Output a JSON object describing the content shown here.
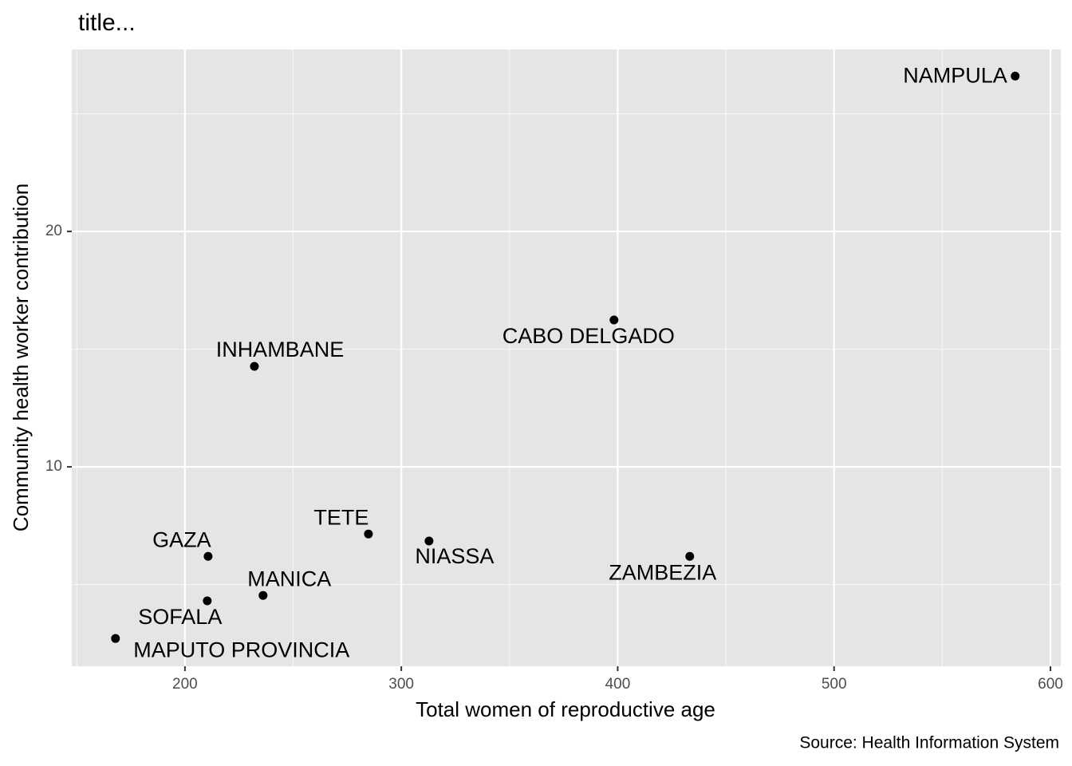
{
  "chart_data": {
    "type": "scatter",
    "title": "title...",
    "x_label": "Total women of reproductive age",
    "y_label": "Community health worker contribution",
    "caption": "Source: Health Information System",
    "labels": [
      "NAMPULA",
      "CABO DELGADO",
      "INHAMBANE",
      "TETE",
      "NIASSA",
      "ZAMBEZIA",
      "GAZA",
      "MANICA",
      "SOFALA",
      "MAPUTO PROVINCIA"
    ],
    "x": [
      583.7,
      398.3,
      232.1,
      284.8,
      312.8,
      433.3,
      210.7,
      236.1,
      210.3,
      167.9
    ],
    "values": [
      26.6,
      16.24,
      14.27,
      7.15,
      6.85,
      6.2,
      6.2,
      4.54,
      4.31,
      2.71
    ],
    "color": "#000000",
    "xlim": [
      147.7,
      604.8
    ],
    "ylim": [
      1.53,
      27.73
    ],
    "xticks": [
      200,
      300,
      400,
      500,
      600
    ],
    "yticks": [
      10,
      20
    ],
    "grid": true,
    "panel_color": "#e5e5e5"
  }
}
